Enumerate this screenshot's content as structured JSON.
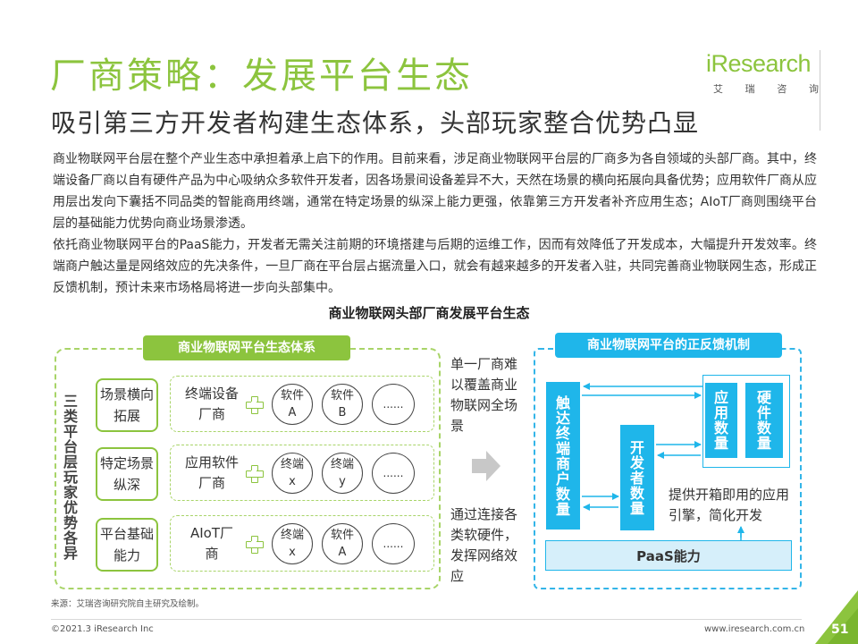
{
  "title": "厂商策略：发展平台生态",
  "subtitle": "吸引第三方开发者构建生态体系，头部玩家整合优势凸显",
  "logo": {
    "word": "iResearch",
    "cn": [
      "艾",
      "瑞",
      "咨",
      "询"
    ]
  },
  "paragraph1": "商业物联网平台层在整个产业生态中承担着承上启下的作用。目前来看，涉足商业物联网平台层的厂商多为各自领域的头部厂商。其中，终端设备厂商以自有硬件产品为中心吸纳众多软件开发者，因各场景间设备差异不大，天然在场景的横向拓展向具备优势；应用软件厂商从应用层出发向下囊括不同品类的智能商用终端，通常在特定场景的纵深上能力更强，依靠第三方开发者补齐应用生态；AIoT厂商则围绕平台层的基础能力优势向商业场景渗透。",
  "paragraph2": "依托商业物联网平台的PaaS能力，开发者无需关注前期的环境搭建与后期的运维工作，因而有效降低了开发成本，大幅提升开发效率。终端商户触达量是网络效应的先决条件，一旦厂商在平台层占据流量入口，就会有越来越多的开发者入驻，共同完善商业物联网生态，形成正反馈机制，预计未来市场格局将进一步向头部集中。",
  "diagram": {
    "title": "商业物联网头部厂商发展平台生态",
    "left": {
      "badge": "商业物联网平台生态体系",
      "vertical_label": "三类平台层玩家优势各异",
      "rows": [
        {
          "category": "场景横向拓展",
          "vendor": "终端设备厂商",
          "items": [
            [
              "软件",
              "A"
            ],
            [
              "软件",
              "B"
            ],
            [
              "......"
            ]
          ]
        },
        {
          "category": "特定场景纵深",
          "vendor": "应用软件厂商",
          "items": [
            [
              "终端",
              "x"
            ],
            [
              "终端",
              "y"
            ],
            [
              "......"
            ]
          ]
        },
        {
          "category": "平台基础能力",
          "vendor": "AIoT厂商",
          "items": [
            [
              "终端",
              "x"
            ],
            [
              "软件",
              "A"
            ],
            [
              "......"
            ]
          ]
        }
      ]
    },
    "middle": {
      "top_text": "单一厂商难以覆盖商业物联网全场景",
      "bottom_text": "通过连接各类软硬件，发挥网络效应"
    },
    "right": {
      "badge": "商业物联网平台的正反馈机制",
      "bar_merchants": "触达终端商户数量",
      "bar_developers": "开发者数量",
      "bar_apps": "应用数量",
      "bar_hardware": "硬件数量",
      "note": "提供开箱即用的应用引擎，简化开发",
      "paas": "PaaS能力"
    }
  },
  "source": "来源：艾瑞咨询研究院自主研究及绘制。",
  "copyright": "©2021.3 iResearch Inc",
  "site": "www.iresearch.com.cn",
  "page_number": "51",
  "colors": {
    "green": "#8cc43e",
    "blue": "#1fb6ea",
    "light_blue": "#d6effa"
  }
}
